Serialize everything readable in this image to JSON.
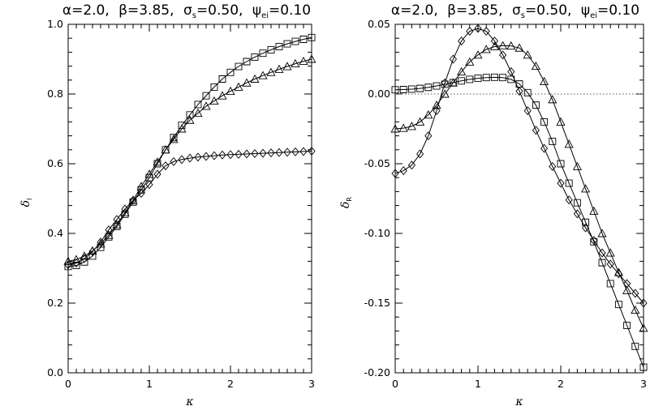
{
  "chart_data": [
    {
      "type": "line",
      "title": "α=2.0,  β=3.85,  σs=0.50,  ψei=0.10",
      "title_parts": {
        "alpha": "α=2.0,",
        "beta": "β=3.85,",
        "sigma": "σ",
        "sigma_sub": "s",
        "sigma_val": "=0.50,",
        "psi": "ψ",
        "psi_sub": "ei",
        "psi_val": "=0.10"
      },
      "xlabel": "κ",
      "ylabel": "δ",
      "ylabel_sub": "I",
      "xlim": [
        0,
        3
      ],
      "ylim": [
        0,
        1
      ],
      "xticks": [
        "0",
        "1",
        "2",
        "3"
      ],
      "yticks": [
        "0.0",
        "0.2",
        "0.4",
        "0.6",
        "0.8",
        "1.0"
      ],
      "grid": false,
      "legend": "none",
      "series": [
        {
          "marker": "square",
          "x": [
            0,
            0.1,
            0.2,
            0.3,
            0.4,
            0.5,
            0.6,
            0.7,
            0.8,
            0.9,
            1.0,
            1.1,
            1.2,
            1.3,
            1.4,
            1.5,
            1.6,
            1.7,
            1.8,
            1.9,
            2.0,
            2.1,
            2.2,
            2.3,
            2.4,
            2.5,
            2.6,
            2.7,
            2.8,
            2.9,
            3.0
          ],
          "y": [
            0.305,
            0.308,
            0.318,
            0.335,
            0.36,
            0.39,
            0.42,
            0.455,
            0.49,
            0.525,
            0.56,
            0.6,
            0.64,
            0.675,
            0.71,
            0.74,
            0.77,
            0.795,
            0.82,
            0.843,
            0.862,
            0.879,
            0.893,
            0.906,
            0.917,
            0.927,
            0.936,
            0.944,
            0.951,
            0.957,
            0.962
          ]
        },
        {
          "marker": "triangle",
          "x": [
            0,
            0.1,
            0.2,
            0.3,
            0.4,
            0.5,
            0.6,
            0.7,
            0.8,
            0.9,
            1.0,
            1.1,
            1.2,
            1.3,
            1.4,
            1.5,
            1.6,
            1.7,
            1.8,
            1.9,
            2.0,
            2.1,
            2.2,
            2.3,
            2.4,
            2.5,
            2.6,
            2.7,
            2.8,
            2.9,
            3.0
          ],
          "y": [
            0.32,
            0.325,
            0.335,
            0.35,
            0.37,
            0.395,
            0.425,
            0.46,
            0.495,
            0.535,
            0.57,
            0.605,
            0.64,
            0.67,
            0.7,
            0.725,
            0.745,
            0.765,
            0.78,
            0.795,
            0.808,
            0.82,
            0.832,
            0.843,
            0.853,
            0.862,
            0.871,
            0.879,
            0.887,
            0.894,
            0.9
          ]
        },
        {
          "marker": "diamond",
          "x": [
            0,
            0.1,
            0.2,
            0.3,
            0.4,
            0.5,
            0.6,
            0.7,
            0.8,
            0.9,
            1.0,
            1.1,
            1.2,
            1.3,
            1.4,
            1.5,
            1.6,
            1.7,
            1.8,
            1.9,
            2.0,
            2.1,
            2.2,
            2.3,
            2.4,
            2.5,
            2.6,
            2.7,
            2.8,
            2.9,
            3.0
          ],
          "y": [
            0.31,
            0.315,
            0.328,
            0.348,
            0.375,
            0.41,
            0.44,
            0.47,
            0.495,
            0.515,
            0.54,
            0.57,
            0.594,
            0.606,
            0.612,
            0.616,
            0.619,
            0.621,
            0.623,
            0.625,
            0.626,
            0.627,
            0.628,
            0.629,
            0.63,
            0.631,
            0.632,
            0.633,
            0.634,
            0.635,
            0.636
          ]
        }
      ]
    },
    {
      "type": "line",
      "title": "α=2.0,  β=3.85,  σs=0.50,  ψei=0.10",
      "title_parts": {
        "alpha": "α=2.0,",
        "beta": "β=3.85,",
        "sigma": "σ",
        "sigma_sub": "s",
        "sigma_val": "=0.50,",
        "psi": "ψ",
        "psi_sub": "ei",
        "psi_val": "=0.10"
      },
      "xlabel": "κ",
      "ylabel": "δ",
      "ylabel_sub": "R",
      "xlim": [
        0,
        3
      ],
      "ylim": [
        -0.2,
        0.05
      ],
      "xticks": [
        "0",
        "1",
        "2",
        "3"
      ],
      "yticks": [
        "-0.20",
        "-0.15",
        "-0.10",
        "-0.05",
        "0.00",
        "0.05"
      ],
      "reference_line": {
        "y": 0.0,
        "style": "dotted"
      },
      "grid": false,
      "legend": "none",
      "series": [
        {
          "marker": "square",
          "x": [
            0,
            0.1,
            0.2,
            0.3,
            0.4,
            0.5,
            0.6,
            0.7,
            0.8,
            0.9,
            1.0,
            1.1,
            1.2,
            1.3,
            1.4,
            1.5,
            1.6,
            1.7,
            1.8,
            1.9,
            2.0,
            2.1,
            2.2,
            2.3,
            2.4,
            2.5,
            2.6,
            2.7,
            2.8,
            2.9,
            3.0
          ],
          "y": [
            0.003,
            0.0032,
            0.0035,
            0.004,
            0.0048,
            0.0058,
            0.007,
            0.0082,
            0.0094,
            0.0105,
            0.0113,
            0.0118,
            0.012,
            0.0118,
            0.0105,
            0.0072,
            0.001,
            -0.008,
            -0.02,
            -0.034,
            -0.05,
            -0.064,
            -0.078,
            -0.092,
            -0.106,
            -0.121,
            -0.136,
            -0.151,
            -0.166,
            -0.181,
            -0.196
          ]
        },
        {
          "marker": "triangle",
          "x": [
            0,
            0.1,
            0.2,
            0.3,
            0.4,
            0.5,
            0.6,
            0.7,
            0.8,
            0.9,
            1.0,
            1.1,
            1.2,
            1.3,
            1.4,
            1.5,
            1.6,
            1.7,
            1.8,
            1.9,
            2.0,
            2.1,
            2.2,
            2.3,
            2.4,
            2.5,
            2.6,
            2.7,
            2.8,
            2.9,
            3.0
          ],
          "y": [
            -0.025,
            -0.0245,
            -0.0232,
            -0.02,
            -0.015,
            -0.008,
            0.0,
            0.008,
            0.016,
            0.023,
            0.028,
            0.032,
            0.034,
            0.0347,
            0.0345,
            0.033,
            0.028,
            0.02,
            0.009,
            -0.004,
            -0.02,
            -0.036,
            -0.052,
            -0.068,
            -0.084,
            -0.1,
            -0.114,
            -0.128,
            -0.141,
            -0.155,
            -0.168
          ]
        },
        {
          "marker": "diamond",
          "x": [
            0,
            0.1,
            0.2,
            0.3,
            0.4,
            0.5,
            0.6,
            0.7,
            0.8,
            0.9,
            1.0,
            1.1,
            1.2,
            1.3,
            1.4,
            1.5,
            1.6,
            1.7,
            1.8,
            1.9,
            2.0,
            2.1,
            2.2,
            2.3,
            2.4,
            2.5,
            2.6,
            2.7,
            2.8,
            2.9,
            3.0
          ],
          "y": [
            -0.057,
            -0.055,
            -0.051,
            -0.043,
            -0.03,
            -0.012,
            0.008,
            0.025,
            0.038,
            0.045,
            0.047,
            0.045,
            0.038,
            0.028,
            0.016,
            0.002,
            -0.012,
            -0.026,
            -0.039,
            -0.052,
            -0.064,
            -0.076,
            -0.086,
            -0.096,
            -0.105,
            -0.114,
            -0.122,
            -0.129,
            -0.136,
            -0.143,
            -0.15
          ]
        }
      ]
    }
  ]
}
